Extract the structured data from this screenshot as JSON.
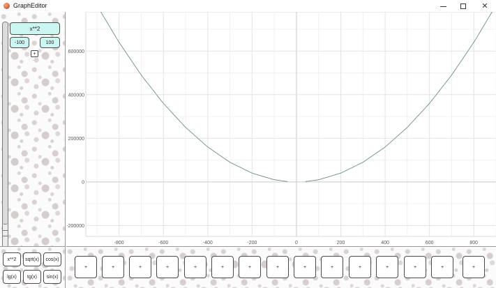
{
  "window": {
    "title": "GraphEditor",
    "controls": {
      "minimize": "",
      "maximize": "",
      "close": "✕"
    }
  },
  "sidebar": {
    "function_input": "x**2",
    "range_min": "-100",
    "range_max": "100",
    "add_label": "+"
  },
  "presets": [
    {
      "label": "x**2"
    },
    {
      "label": "sqrt(x)"
    },
    {
      "label": "cos(x)"
    },
    {
      "label": "lg(x)"
    },
    {
      "label": "tg(x)"
    },
    {
      "label": "sin(x)"
    }
  ],
  "slots": [
    "+",
    "+",
    "+",
    "+",
    "+",
    "+",
    "+",
    "+",
    "+",
    "+",
    "+",
    "+",
    "+",
    "+",
    "+"
  ],
  "chart_data": {
    "type": "line",
    "title": "",
    "xlabel": "",
    "ylabel": "",
    "grid": true,
    "xlim": [
      -950,
      900
    ],
    "ylim": [
      -250000,
      780000
    ],
    "x_ticks": [
      -800,
      -600,
      -400,
      -200,
      0,
      200,
      400,
      600,
      800
    ],
    "y_ticks": [
      -200000,
      0,
      200000,
      400000,
      600000
    ],
    "x_tick_labels": [
      "-800",
      "-600",
      "-400",
      "-200",
      "0",
      "200",
      "400",
      "600",
      "800"
    ],
    "y_tick_labels": [
      "-200000",
      "0",
      "200000",
      "400000",
      "600000"
    ],
    "series": [
      {
        "color": "#6f8c85",
        "segments": [
          {
            "x": [
              -900,
              -800,
              -700,
              -600,
              -500,
              -400,
              -300,
              -200,
              -100,
              -40
            ],
            "y": [
              810000,
              640000,
              490000,
              360000,
              250000,
              160000,
              90000,
              40000,
              10000,
              1600
            ]
          },
          {
            "x": [
              40,
              100,
              200,
              300,
              400,
              500,
              600,
              700,
              800,
              900
            ],
            "y": [
              1600,
              10000,
              40000,
              90000,
              160000,
              250000,
              360000,
              490000,
              640000,
              810000
            ]
          }
        ]
      }
    ]
  }
}
